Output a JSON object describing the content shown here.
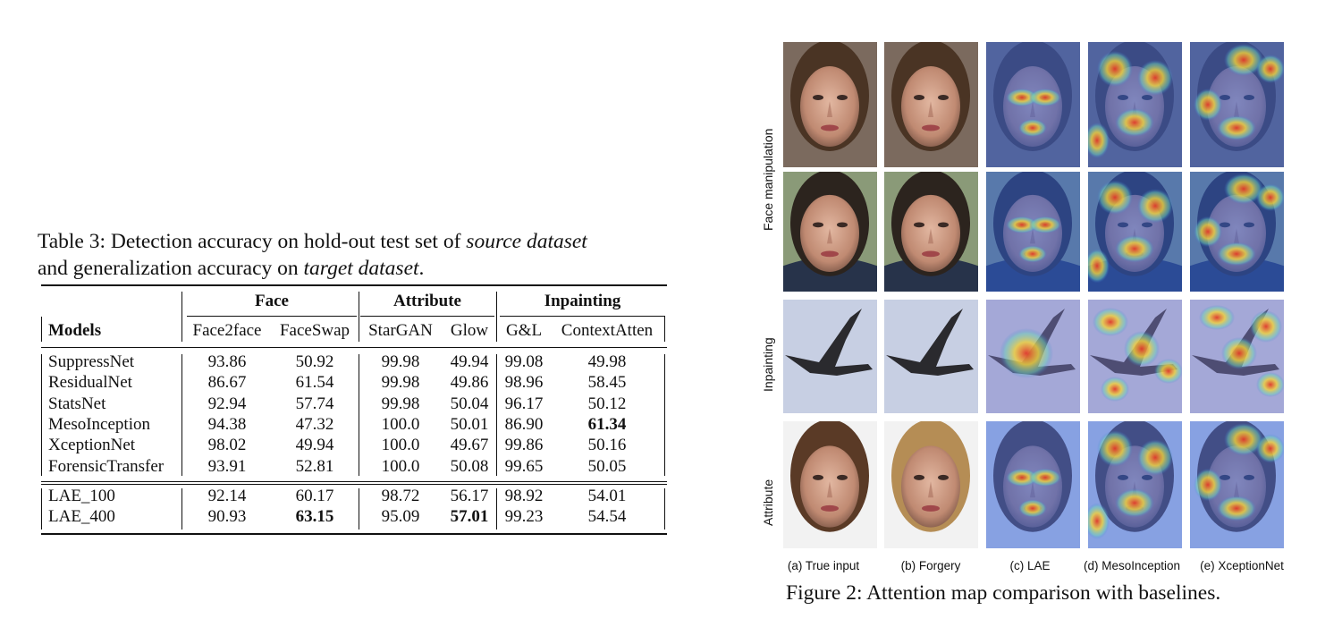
{
  "table": {
    "caption_parts": {
      "p1": "Table 3: Detection accuracy on hold-out test set of ",
      "i1": "source dataset",
      "p2": "and generalization accuracy on ",
      "i2": "target dataset",
      "p3": "."
    },
    "group_headers": [
      "Face",
      "Attribute",
      "Inpainting"
    ],
    "columns": [
      "Models",
      "Face2face",
      "FaceSwap",
      "StarGAN",
      "Glow",
      "G&L",
      "ContextAtten"
    ],
    "rows": [
      {
        "model": "SuppressNet",
        "values": [
          "93.86",
          "50.92",
          "99.98",
          "49.94",
          "99.08",
          "49.98"
        ]
      },
      {
        "model": "ResidualNet",
        "values": [
          "86.67",
          "61.54",
          "99.98",
          "49.86",
          "98.96",
          "58.45"
        ]
      },
      {
        "model": "StatsNet",
        "values": [
          "92.94",
          "57.74",
          "99.98",
          "50.04",
          "96.17",
          "50.12"
        ]
      },
      {
        "model": "MesoInception",
        "values": [
          "94.38",
          "47.32",
          "100.0",
          "50.01",
          "86.90",
          "61.34"
        ]
      },
      {
        "model": "XceptionNet",
        "values": [
          "98.02",
          "49.94",
          "100.0",
          "49.67",
          "99.86",
          "50.16"
        ]
      },
      {
        "model": "ForensicTransfer",
        "values": [
          "93.91",
          "52.81",
          "100.0",
          "50.08",
          "99.65",
          "50.05"
        ]
      }
    ],
    "rows_ours": [
      {
        "model": "LAE_100",
        "values": [
          "92.14",
          "60.17",
          "98.72",
          "56.17",
          "98.92",
          "54.01"
        ]
      },
      {
        "model": "LAE_400",
        "values": [
          "90.93",
          "63.15",
          "95.09",
          "57.01",
          "99.23",
          "54.54"
        ]
      }
    ],
    "bold_cells": [
      "MesoInception:5",
      "LAE_400:1",
      "LAE_400:3"
    ]
  },
  "figure": {
    "row_labels": [
      "Face manipulation",
      "Inpainting",
      "Attribute"
    ],
    "column_labels": [
      "(a) True input",
      "(b) Forgery",
      "(c) LAE",
      "(d) MesoInception",
      "(e) XceptionNet"
    ],
    "caption": "Figure 2: Attention map comparison with baselines."
  }
}
